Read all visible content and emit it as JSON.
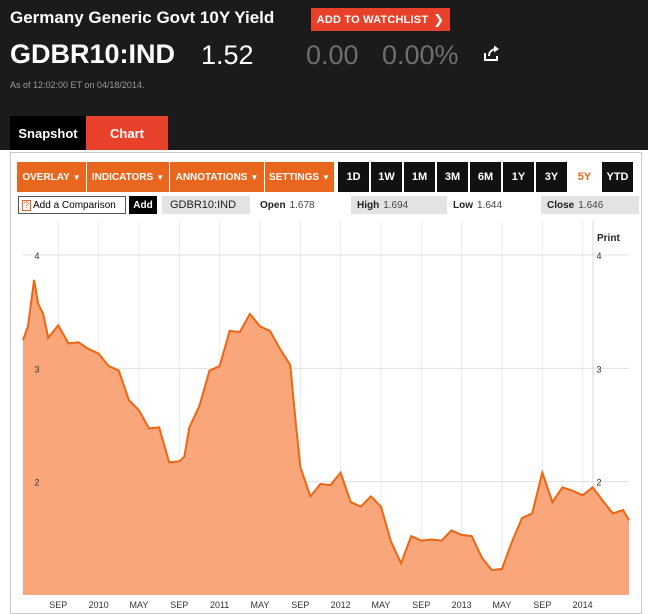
{
  "header": {
    "title": "Germany Generic Govt 10Y Yield",
    "watchlist_label": "ADD TO WATCHLIST",
    "ticker": "GDBR10:IND",
    "price": "1.52",
    "change": "0.00",
    "change_pct": "0.00%",
    "as_of": "As of 12:02:00 ET on 04/18/2014."
  },
  "tabs": [
    {
      "label": "Snapshot"
    },
    {
      "label": "Chart"
    }
  ],
  "toolbar": {
    "dropdowns": [
      "OVERLAY",
      "INDICATORS",
      "ANNOTATIONS",
      "SETTINGS"
    ],
    "ranges": [
      "1D",
      "1W",
      "1M",
      "3M",
      "6M",
      "1Y",
      "3Y",
      "5Y",
      "YTD"
    ],
    "active_range": "5Y"
  },
  "compare": {
    "placeholder": "Add a Comparison",
    "add_label": "Add",
    "ticker": "GDBR10:IND",
    "open_label": "Open",
    "open_value": "1.678",
    "high_label": "High",
    "high_value": "1.694",
    "low_label": "Low",
    "low_value": "1.644",
    "close_label": "Close",
    "close_value": "1.646"
  },
  "print_label": "Print",
  "colors": {
    "accent": "#e8661d",
    "brand_red": "#e8412b",
    "area_fill": "#f9a77a",
    "line": "#ee6512"
  },
  "chart_data": {
    "type": "area",
    "ylim": [
      1.0,
      4.3
    ],
    "y_ticks": [
      "2",
      "3",
      "4"
    ],
    "x_tick_labels": [
      "SEP",
      "2010",
      "MAY",
      "SEP",
      "2011",
      "MAY",
      "SEP",
      "2012",
      "MAY",
      "SEP",
      "2013",
      "MAY",
      "SEP",
      "2014"
    ],
    "x_tick_months": [
      8,
      12,
      16,
      20,
      24,
      28,
      32,
      36,
      40,
      44,
      48,
      52,
      56,
      60
    ],
    "x_range_months": [
      4.5,
      64.6
    ],
    "series": [
      {
        "x": [
          4.5,
          5,
          5.6,
          6,
          6.5,
          7,
          8,
          9,
          10,
          11,
          12,
          13,
          14,
          15,
          16,
          17,
          18,
          19,
          20,
          20.5,
          21,
          22,
          23,
          24,
          25,
          26,
          27,
          28,
          29,
          30,
          31,
          31.5,
          32,
          33,
          34,
          35,
          36,
          37,
          38,
          39,
          40,
          41,
          42,
          43,
          44,
          45,
          46,
          47,
          48,
          49,
          50,
          51,
          52,
          53,
          54,
          55,
          56,
          57,
          58,
          59,
          60,
          61,
          62,
          63,
          64,
          64.6
        ],
        "y": [
          3.25,
          3.4,
          3.75,
          3.6,
          3.45,
          3.3,
          3.35,
          3.25,
          3.2,
          3.2,
          3.1,
          3.05,
          2.95,
          2.75,
          2.6,
          2.5,
          2.45,
          2.2,
          2.15,
          2.25,
          2.45,
          2.7,
          2.95,
          3.05,
          3.3,
          3.35,
          3.45,
          3.4,
          3.3,
          3.2,
          3.0,
          2.6,
          2.1,
          1.9,
          1.95,
          2.0,
          2.05,
          1.85,
          1.75,
          1.9,
          1.75,
          1.5,
          1.25,
          1.55,
          1.45,
          1.52,
          1.45,
          1.6,
          1.5,
          1.55,
          1.3,
          1.25,
          1.2,
          1.5,
          1.65,
          1.75,
          2.05,
          1.85,
          1.92,
          1.95,
          1.85,
          1.98,
          1.8,
          1.75,
          1.72,
          1.66
        ]
      }
    ]
  }
}
